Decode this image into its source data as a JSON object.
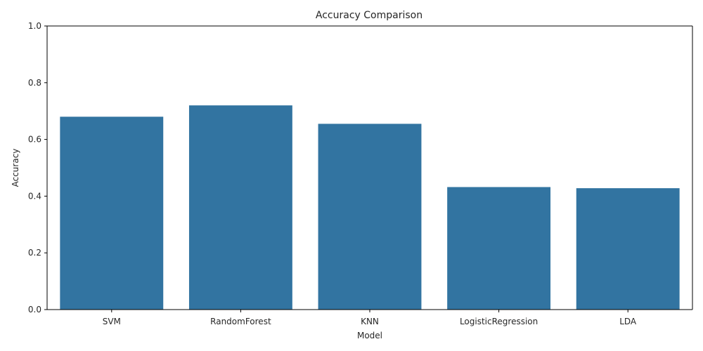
{
  "chart_data": {
    "type": "bar",
    "title": "Accuracy Comparison",
    "xlabel": "Model",
    "ylabel": "Accuracy",
    "categories": [
      "SVM",
      "RandomForest",
      "KNN",
      "LogisticRegression",
      "LDA"
    ],
    "values": [
      0.68,
      0.72,
      0.655,
      0.432,
      0.428
    ],
    "ylim": [
      0,
      1
    ],
    "yticks": [
      "0.0",
      "0.2",
      "0.4",
      "0.6",
      "0.8",
      "1.0"
    ],
    "ytick_values": [
      0,
      0.2,
      0.4,
      0.6,
      0.8,
      1.0
    ],
    "grid": false,
    "bar_color": "#3274a1"
  }
}
